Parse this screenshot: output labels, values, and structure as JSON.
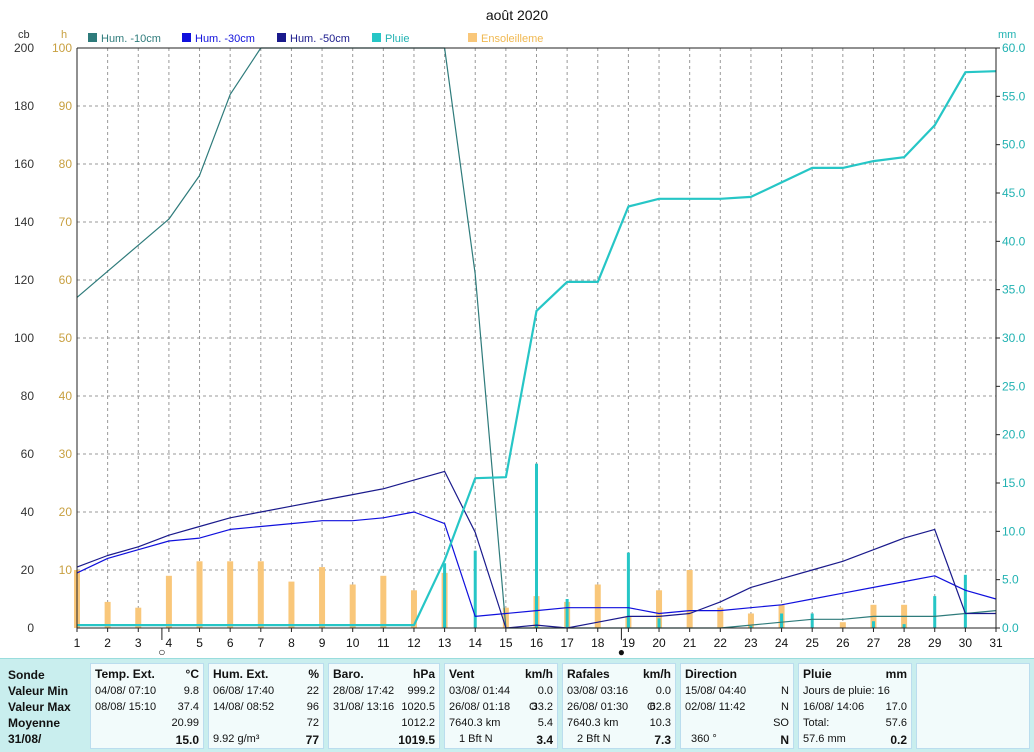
{
  "chart_data": {
    "type": "line",
    "title": "août 2020",
    "unit_left_cb": "cb",
    "unit_left_h": "h",
    "unit_right": "mm",
    "x": [
      1,
      2,
      3,
      4,
      5,
      6,
      7,
      8,
      9,
      10,
      11,
      12,
      13,
      14,
      15,
      16,
      17,
      18,
      19,
      20,
      21,
      22,
      23,
      24,
      25,
      26,
      27,
      28,
      29,
      30,
      31
    ],
    "xlim": [
      1,
      31
    ],
    "y_left_cb": {
      "ylim": [
        0,
        200
      ],
      "ticks": [
        0,
        20,
        40,
        60,
        80,
        100,
        120,
        140,
        160,
        180,
        200
      ]
    },
    "y_left_h": {
      "ylim": [
        0,
        100
      ],
      "ticks": [
        10,
        20,
        30,
        40,
        50,
        60,
        70,
        80,
        90,
        100
      ]
    },
    "y_right_mm": {
      "ylim": [
        0,
        60
      ],
      "ticks": [
        "0.0",
        "5.0",
        "10.0",
        "15.0",
        "20.0",
        "25.0",
        "30.0",
        "35.0",
        "40.0",
        "45.0",
        "50.0",
        "55.0",
        "60.0"
      ]
    },
    "grid": true,
    "legend": "top",
    "series": [
      {
        "name": "Hum. -10cm",
        "color": "#2e7b7b",
        "axis": "cb",
        "x": [
          1,
          2,
          3,
          4,
          5,
          6,
          7,
          13,
          14,
          15,
          16,
          17,
          18,
          19,
          20,
          21,
          22,
          23,
          24,
          25,
          26,
          27,
          28,
          29,
          30,
          31
        ],
        "values": [
          114,
          123,
          132,
          141,
          156,
          184,
          200,
          200,
          122,
          0,
          0,
          0,
          0,
          0,
          0,
          0,
          0,
          1,
          2,
          3,
          3,
          4,
          4,
          4,
          5,
          6
        ]
      },
      {
        "name": "Hum. -30cm",
        "color": "#1010dd",
        "axis": "cb",
        "x": [
          1,
          2,
          3,
          4,
          5,
          6,
          7,
          8,
          9,
          10,
          11,
          12,
          13,
          14,
          15,
          16,
          17,
          18,
          19,
          20,
          21,
          22,
          23,
          24,
          25,
          26,
          27,
          28,
          29,
          30,
          31
        ],
        "values": [
          19,
          24,
          27,
          30,
          31,
          34,
          35,
          36,
          37,
          37,
          38,
          40,
          36,
          4,
          5,
          6,
          7,
          7,
          7,
          5,
          6,
          6,
          7,
          8,
          10,
          12,
          14,
          16,
          18,
          13,
          10
        ]
      },
      {
        "name": "Hum. -50cm",
        "color": "#1a1a8c",
        "axis": "cb",
        "x": [
          1,
          2,
          3,
          4,
          5,
          6,
          7,
          8,
          9,
          10,
          11,
          12,
          13,
          14,
          15,
          16,
          17,
          18,
          19,
          20,
          21,
          22,
          23,
          24,
          25,
          26,
          27,
          28,
          29,
          30,
          31
        ],
        "values": [
          21,
          25,
          28,
          32,
          35,
          38,
          40,
          42,
          44,
          46,
          48,
          51,
          54,
          33,
          0,
          1,
          0,
          2,
          4,
          4,
          5,
          9,
          14,
          17,
          20,
          23,
          27,
          31,
          34,
          5,
          5
        ]
      },
      {
        "name": "Pluie",
        "color": "#26c6c6",
        "axis": "mm",
        "x": [
          1,
          12,
          13,
          14,
          15,
          16,
          17,
          18,
          19,
          20,
          21,
          22,
          23,
          24,
          25,
          26,
          27,
          28,
          29,
          30,
          31
        ],
        "values": [
          0.3,
          0.3,
          7.0,
          15.5,
          15.6,
          32.8,
          35.8,
          35.8,
          43.6,
          44.4,
          44.4,
          44.4,
          44.6,
          46.1,
          47.6,
          47.6,
          48.3,
          48.7,
          52.0,
          57.5,
          57.6
        ]
      },
      {
        "name": "Ensoleilleme",
        "color": "#f9c77a",
        "axis": "h",
        "type": "bar",
        "x": [
          1,
          2,
          3,
          4,
          5,
          6,
          7,
          8,
          9,
          10,
          11,
          12,
          13,
          14,
          15,
          16,
          17,
          18,
          19,
          20,
          21,
          22,
          23,
          24,
          25,
          26,
          27,
          28
        ],
        "values": [
          10,
          4.5,
          3.5,
          9,
          11.5,
          11.5,
          11.5,
          8,
          10.5,
          7.5,
          9,
          6.5,
          9.5,
          0,
          3.5,
          5.5,
          4.5,
          7.5,
          2,
          6.5,
          10,
          3.5,
          2.5,
          4,
          0,
          1,
          4,
          4
        ]
      }
    ],
    "rain_daily": {
      "name": "Pluie (jour)",
      "color": "#26c6c6",
      "axis": "mm",
      "x": [
        13,
        14,
        16,
        17,
        19,
        20,
        23,
        24,
        25,
        27,
        28,
        29,
        30
      ],
      "values": [
        6.7,
        8.0,
        17.0,
        3.0,
        7.8,
        1.0,
        0.2,
        1.5,
        1.5,
        0.7,
        0.4,
        3.3,
        5.5
      ]
    },
    "moon_markers": [
      {
        "x": 4,
        "symbol": "○"
      },
      {
        "x": 19,
        "symbol": "●"
      }
    ]
  },
  "summary": {
    "col0": {
      "sonde": "Sonde",
      "min": "Valeur Min",
      "max": "Valeur Max",
      "moy": "Moyenne",
      "date": "31/08/"
    },
    "temp": {
      "title": "Temp. Ext.",
      "unit": "°C",
      "min_date": "04/08/  07:10",
      "min_val": "9.8",
      "max_date": "08/08/  15:10",
      "max_val": "37.4",
      "moy_val": "20.99",
      "cur_val": "15.0"
    },
    "hum": {
      "title": "Hum. Ext.",
      "unit": "%",
      "min_date": "06/08/  17:40",
      "min_val": "22",
      "max_date": "14/08/  08:52",
      "max_val": "96",
      "moy_val": "72",
      "cur_extra": "9.92 g/m³",
      "cur_val": "77"
    },
    "baro": {
      "title": "Baro.",
      "unit": "hPa",
      "min_date": "28/08/  17:42",
      "min_val": "999.2",
      "max_date": "31/08/  13:16",
      "max_val": "1020.5",
      "moy_val": "1012.2",
      "cur_val": "1019.5"
    },
    "vent": {
      "title": "Vent",
      "unit": "km/h",
      "min_date": "03/08/  01:44",
      "min_val": "0.0",
      "max_date": "26/08/  01:18",
      "max_dir": "O",
      "max_val": "33.2",
      "moy_extra": "7640.3 km",
      "moy_val": "5.4",
      "cur_extra": "1 Bft N",
      "cur_val": "3.4"
    },
    "rafales": {
      "title": "Rafales",
      "unit": "km/h",
      "min_date": "03/08/  03:16",
      "min_val": "0.0",
      "max_date": "26/08/  01:30",
      "max_dir": "O",
      "max_val": "62.8",
      "moy_extra": "7640.3 km",
      "moy_val": "10.3",
      "cur_extra": "2 Bft N",
      "cur_val": "7.3"
    },
    "direction": {
      "title": "Direction",
      "min_date": "15/08/  04:40",
      "min_val": "N",
      "max_date": "02/08/  11:42",
      "max_val": "N",
      "moy_val": "SO",
      "cur_extra": "360 °",
      "cur_val": "N"
    },
    "pluie": {
      "title": "Pluie",
      "unit": "mm",
      "days": "Jours de pluie: 16",
      "max_date": "16/08/  14:06",
      "max_val": "17.0",
      "total_lbl": "Total:",
      "total_val": "57.6",
      "cur_extra": "57.6 mm",
      "cur_val": "0.2"
    }
  }
}
